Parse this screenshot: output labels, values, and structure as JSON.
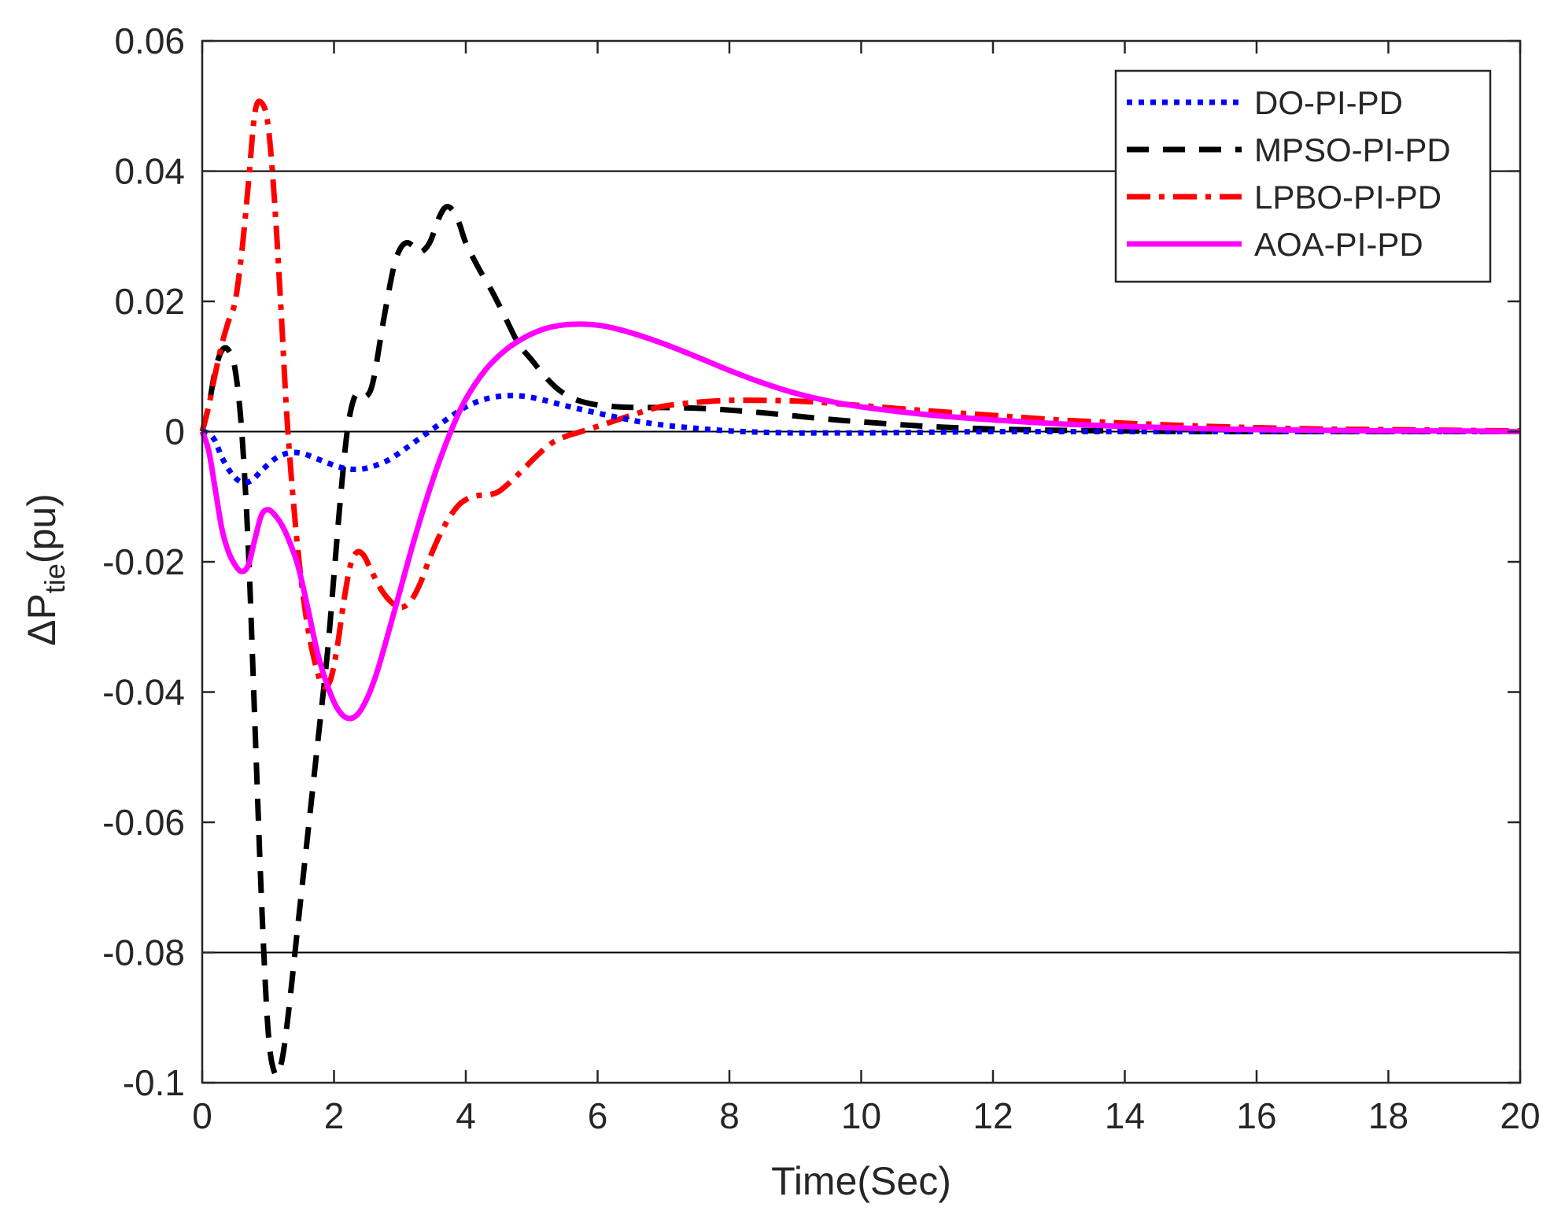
{
  "chart_data": {
    "type": "line",
    "title": "",
    "xlabel": "Time(Sec)",
    "ylabel_main": "ΔP",
    "ylabel_sub": "tie",
    "ylabel_unit": "(pu)",
    "xlim": [
      0,
      20
    ],
    "ylim": [
      -0.1,
      0.06
    ],
    "xticks": [
      0,
      2,
      4,
      6,
      8,
      10,
      12,
      14,
      16,
      18,
      20
    ],
    "yticks": [
      -0.1,
      -0.08,
      -0.06,
      -0.04,
      -0.02,
      0,
      0.02,
      0.04,
      0.06
    ],
    "xtick_labels": [
      "0",
      "2",
      "4",
      "6",
      "8",
      "10",
      "12",
      "14",
      "16",
      "18",
      "20"
    ],
    "ytick_labels": [
      "-0.1",
      "-0.08",
      "-0.06",
      "-0.04",
      "-0.02",
      "0",
      "0.02",
      "0.04",
      "0.06"
    ],
    "gridlines_y": [
      -0.08,
      0,
      0.04
    ],
    "legend_position": "top-right",
    "series": [
      {
        "name": "DO-PI-PD",
        "color": "#0000ff",
        "style": "dotted",
        "x": [
          0,
          0.1,
          0.2,
          0.3,
          0.45,
          0.6,
          0.75,
          0.9,
          1.1,
          1.3,
          1.5,
          1.7,
          1.9,
          2.1,
          2.3,
          2.5,
          2.8,
          3.1,
          3.4,
          3.7,
          4.0,
          4.3,
          4.6,
          4.9,
          5.2,
          5.5,
          5.8,
          6.2,
          6.6,
          7.0,
          7.5,
          8.0,
          8.5,
          9.0,
          9.5,
          10,
          11,
          12,
          13,
          14,
          15,
          16,
          17,
          18,
          19,
          20
        ],
        "values": [
          0,
          -0.0003,
          -0.0015,
          -0.004,
          -0.0065,
          -0.0078,
          -0.0075,
          -0.006,
          -0.0042,
          -0.0033,
          -0.0033,
          -0.004,
          -0.0048,
          -0.0055,
          -0.0058,
          -0.0056,
          -0.0045,
          -0.0025,
          -0.0003,
          0.0018,
          0.0038,
          0.005,
          0.0055,
          0.0054,
          0.0048,
          0.004,
          0.0033,
          0.0024,
          0.0016,
          0.001,
          0.0005,
          0.0001,
          -0.0001,
          -0.0002,
          -0.0002,
          -0.0002,
          -0.0001,
          0,
          0,
          0,
          0,
          0,
          0,
          0,
          0,
          0
        ]
      },
      {
        "name": "MPSO-PI-PD",
        "color": "#000000",
        "style": "dashed",
        "x": [
          0,
          0.1,
          0.2,
          0.3,
          0.4,
          0.5,
          0.6,
          0.7,
          0.8,
          0.9,
          1.0,
          1.1,
          1.2,
          1.3,
          1.45,
          1.6,
          1.75,
          1.9,
          2.0,
          2.1,
          2.2,
          2.3,
          2.4,
          2.5,
          2.6,
          2.75,
          2.9,
          3.0,
          3.1,
          3.2,
          3.3,
          3.45,
          3.6,
          3.7,
          3.8,
          3.9,
          4.0,
          4.2,
          4.4,
          4.6,
          4.8,
          5.0,
          5.2,
          5.4,
          5.6,
          5.8,
          6.0,
          6.3,
          6.6,
          7.0,
          7.5,
          8.0,
          8.5,
          9.0,
          9.5,
          10,
          11,
          12,
          13,
          14,
          15,
          16,
          17,
          18,
          19,
          20
        ],
        "values": [
          0,
          0.004,
          0.0095,
          0.0125,
          0.0125,
          0.0095,
          0.0,
          -0.018,
          -0.045,
          -0.072,
          -0.092,
          -0.0985,
          -0.097,
          -0.09,
          -0.076,
          -0.062,
          -0.048,
          -0.034,
          -0.022,
          -0.01,
          0.0,
          0.005,
          0.006,
          0.0055,
          0.008,
          0.017,
          0.025,
          0.028,
          0.029,
          0.0285,
          0.0275,
          0.029,
          0.033,
          0.0345,
          0.034,
          0.032,
          0.029,
          0.025,
          0.0215,
          0.0175,
          0.0135,
          0.011,
          0.0085,
          0.0065,
          0.0052,
          0.0045,
          0.0041,
          0.0038,
          0.0037,
          0.0037,
          0.0036,
          0.0033,
          0.0029,
          0.0024,
          0.0019,
          0.0015,
          0.0008,
          0.0004,
          0.0002,
          0.0001,
          0,
          0,
          0,
          0,
          0,
          0
        ]
      },
      {
        "name": "LPBO-PI-PD",
        "color": "#ff0000",
        "style": "dashdot",
        "x": [
          0,
          0.1,
          0.2,
          0.3,
          0.4,
          0.5,
          0.6,
          0.7,
          0.8,
          0.9,
          1.0,
          1.1,
          1.2,
          1.3,
          1.45,
          1.6,
          1.75,
          1.85,
          1.95,
          2.05,
          2.15,
          2.25,
          2.35,
          2.45,
          2.55,
          2.7,
          2.85,
          3.0,
          3.15,
          3.3,
          3.45,
          3.6,
          3.75,
          3.9,
          4.05,
          4.2,
          4.35,
          4.5,
          4.7,
          4.9,
          5.1,
          5.3,
          5.5,
          5.75,
          6.0,
          6.3,
          6.6,
          7.0,
          7.5,
          8.0,
          8.5,
          9.0,
          9.5,
          10,
          11,
          12,
          13,
          14,
          15,
          16,
          17,
          18,
          19,
          20
        ],
        "values": [
          0,
          0.004,
          0.009,
          0.0135,
          0.017,
          0.02,
          0.0275,
          0.038,
          0.049,
          0.0505,
          0.047,
          0.035,
          0.018,
          0.0,
          -0.018,
          -0.03,
          -0.037,
          -0.0392,
          -0.038,
          -0.033,
          -0.026,
          -0.0205,
          -0.0185,
          -0.019,
          -0.021,
          -0.024,
          -0.026,
          -0.027,
          -0.0262,
          -0.0235,
          -0.0195,
          -0.016,
          -0.0132,
          -0.0112,
          -0.0102,
          -0.0098,
          -0.0097,
          -0.0092,
          -0.0075,
          -0.0055,
          -0.0035,
          -0.0018,
          -0.0008,
          0.0,
          0.0008,
          0.0018,
          0.0028,
          0.0039,
          0.0045,
          0.0048,
          0.0048,
          0.0047,
          0.0044,
          0.004,
          0.0032,
          0.0025,
          0.0018,
          0.0013,
          0.0009,
          0.0006,
          0.0004,
          0.0003,
          0.0002,
          0.0001
        ]
      },
      {
        "name": "AOA-PI-PD",
        "color": "#ff00ff",
        "style": "solid",
        "x": [
          0,
          0.1,
          0.2,
          0.3,
          0.4,
          0.5,
          0.6,
          0.7,
          0.8,
          0.9,
          1.0,
          1.1,
          1.2,
          1.3,
          1.45,
          1.6,
          1.75,
          1.9,
          2.05,
          2.2,
          2.35,
          2.5,
          2.65,
          2.8,
          3.0,
          3.2,
          3.4,
          3.6,
          3.8,
          4.0,
          4.3,
          4.6,
          4.9,
          5.2,
          5.5,
          5.8,
          6.1,
          6.5,
          7.0,
          7.5,
          8.0,
          8.5,
          9.0,
          9.5,
          10,
          11,
          12,
          13,
          14,
          15,
          16,
          17,
          18,
          19,
          20
        ],
        "values": [
          0,
          -0.003,
          -0.009,
          -0.015,
          -0.0185,
          -0.0205,
          -0.0215,
          -0.0205,
          -0.0165,
          -0.0128,
          -0.012,
          -0.0128,
          -0.0142,
          -0.0163,
          -0.0205,
          -0.027,
          -0.034,
          -0.039,
          -0.0425,
          -0.044,
          -0.0435,
          -0.041,
          -0.037,
          -0.0318,
          -0.0245,
          -0.0172,
          -0.0105,
          -0.0045,
          0.0007,
          0.005,
          0.0095,
          0.0125,
          0.0145,
          0.0158,
          0.0164,
          0.0165,
          0.0162,
          0.0152,
          0.0135,
          0.0115,
          0.0094,
          0.0075,
          0.0059,
          0.0047,
          0.0038,
          0.0026,
          0.0018,
          0.0012,
          0.0008,
          0.0005,
          0.0003,
          0.0002,
          0.0001,
          0.0001,
          0
        ]
      }
    ]
  }
}
